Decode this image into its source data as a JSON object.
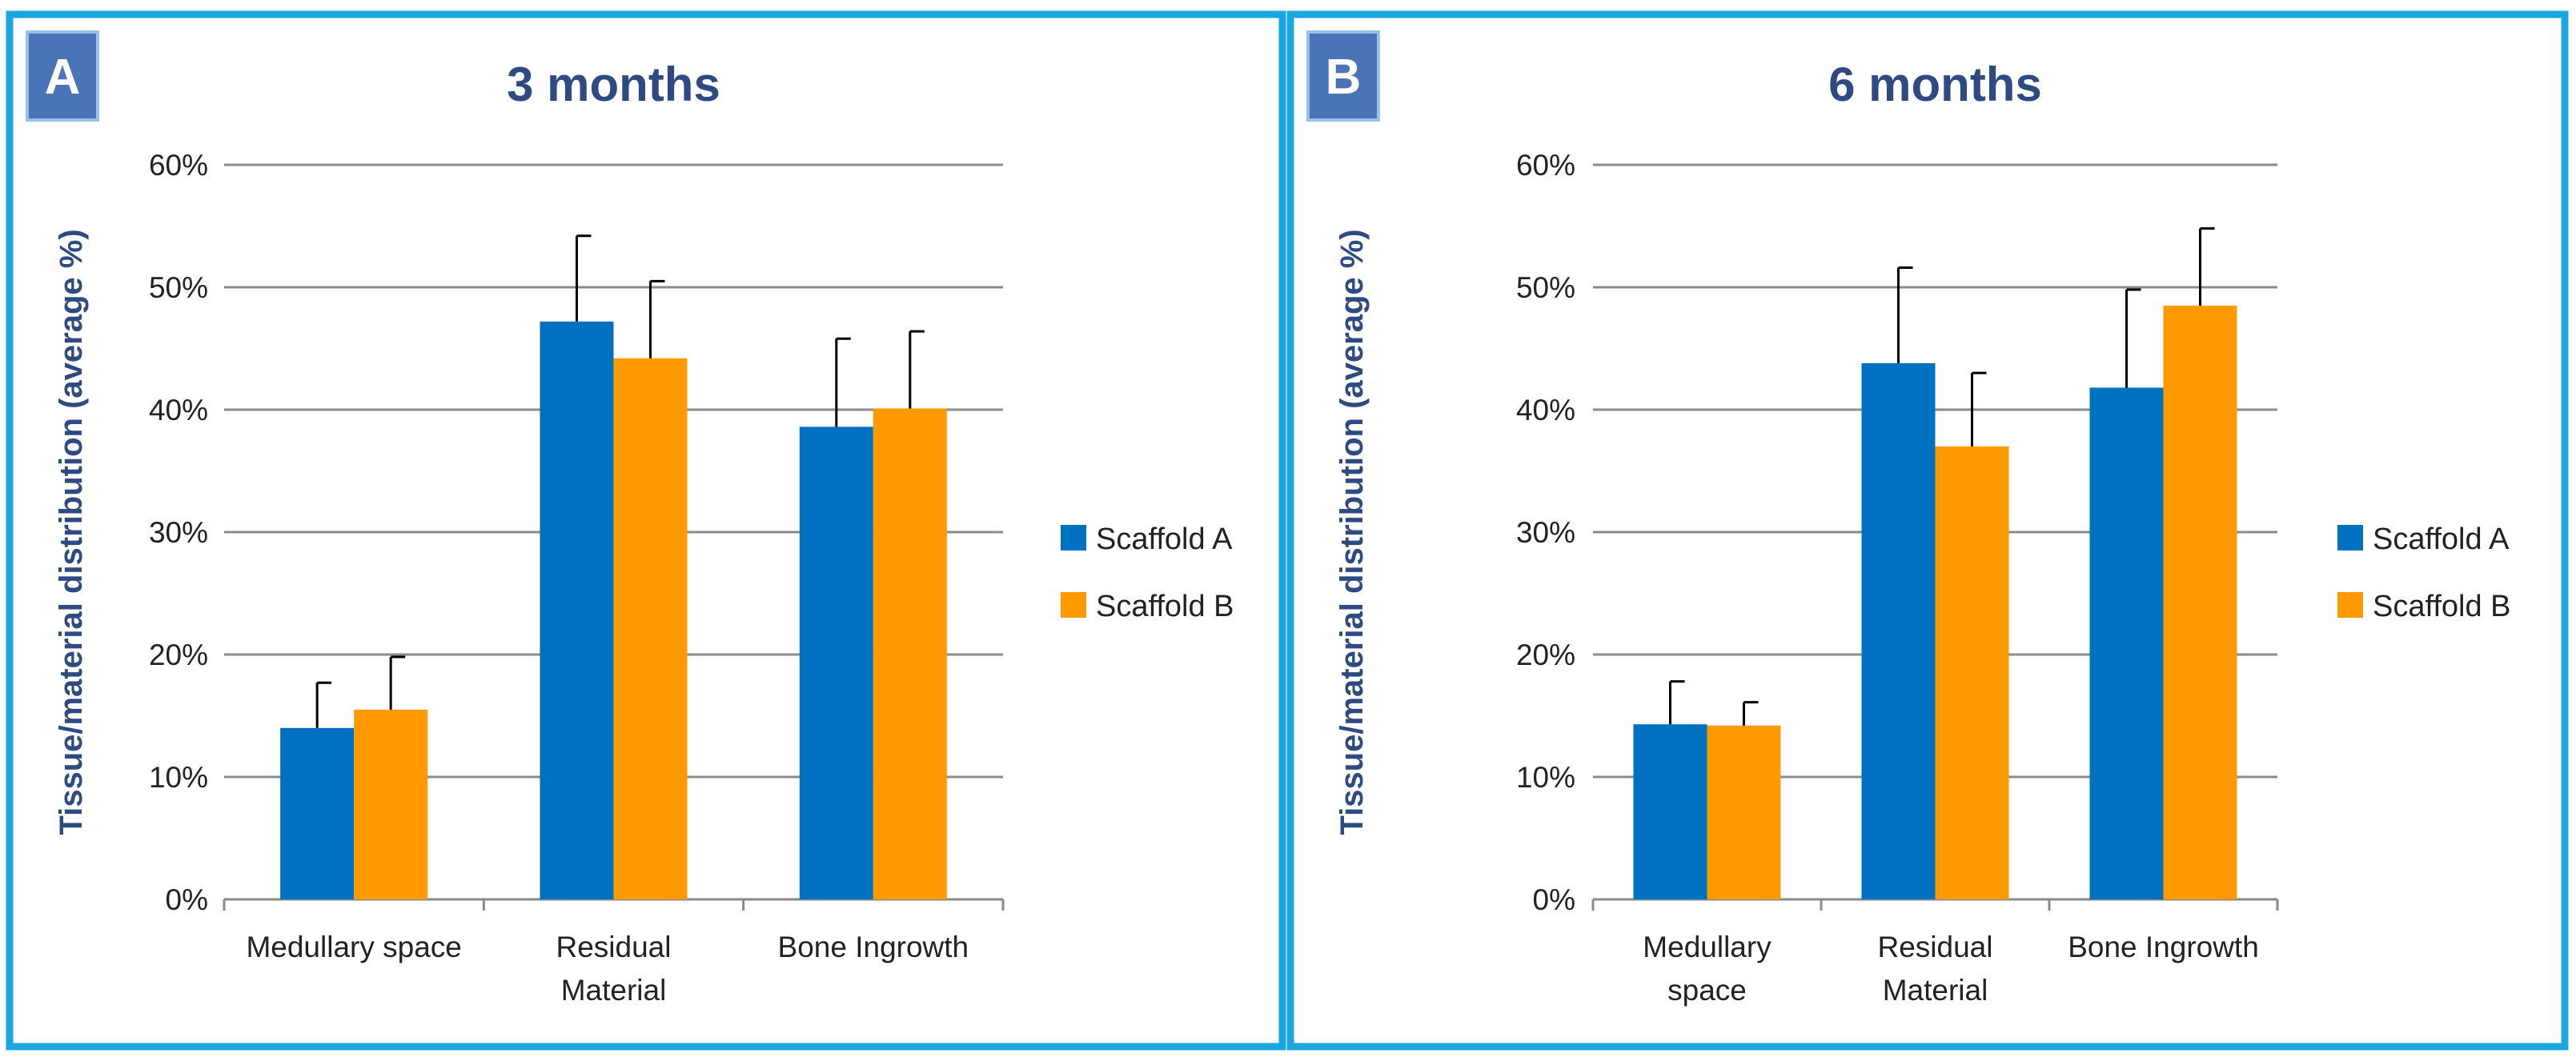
{
  "colors": {
    "frame": "#1aa7e0",
    "badge_fill": "#4a74b6",
    "badge_edge": "#99c0e8",
    "title": "#2e4a80",
    "grid": "#8a8a8a",
    "tick_text": "#222222",
    "scaffold_a": "#0070c0",
    "scaffold_b": "#ff9900"
  },
  "chart_data": [
    {
      "type": "bar",
      "panel": "A",
      "title": "3 months",
      "ylabel": "Tissue/material distribution (average %)",
      "ylim": [
        0,
        60
      ],
      "yticks": [
        "0%",
        "10%",
        "20%",
        "30%",
        "40%",
        "50%",
        "60%"
      ],
      "categories": [
        [
          "Medullary space"
        ],
        [
          "Residual",
          "Material"
        ],
        [
          "Bone Ingrowth"
        ]
      ],
      "series": [
        {
          "name": "Scaffold A",
          "values": [
            14.0,
            47.2,
            38.6
          ],
          "error": [
            3.7,
            7.0,
            7.2
          ]
        },
        {
          "name": "Scaffold B",
          "values": [
            15.5,
            44.2,
            40.1
          ],
          "error": [
            4.3,
            6.3,
            6.3
          ]
        }
      ],
      "legend": "right",
      "grid": true
    },
    {
      "type": "bar",
      "panel": "B",
      "title": "6 months",
      "ylabel": "Tissue/material distribution (average %)",
      "ylim": [
        0,
        60
      ],
      "yticks": [
        "0%",
        "10%",
        "20%",
        "30%",
        "40%",
        "50%",
        "60%"
      ],
      "categories": [
        [
          "Medullary",
          "space"
        ],
        [
          "Residual",
          "Material"
        ],
        [
          "Bone Ingrowth"
        ]
      ],
      "series": [
        {
          "name": "Scaffold A",
          "values": [
            14.3,
            43.8,
            41.8
          ],
          "error": [
            3.5,
            7.8,
            8.0
          ]
        },
        {
          "name": "Scaffold B",
          "values": [
            14.2,
            37.0,
            48.5
          ],
          "error": [
            1.9,
            6.0,
            6.3
          ]
        }
      ],
      "legend": "right",
      "grid": true
    }
  ]
}
